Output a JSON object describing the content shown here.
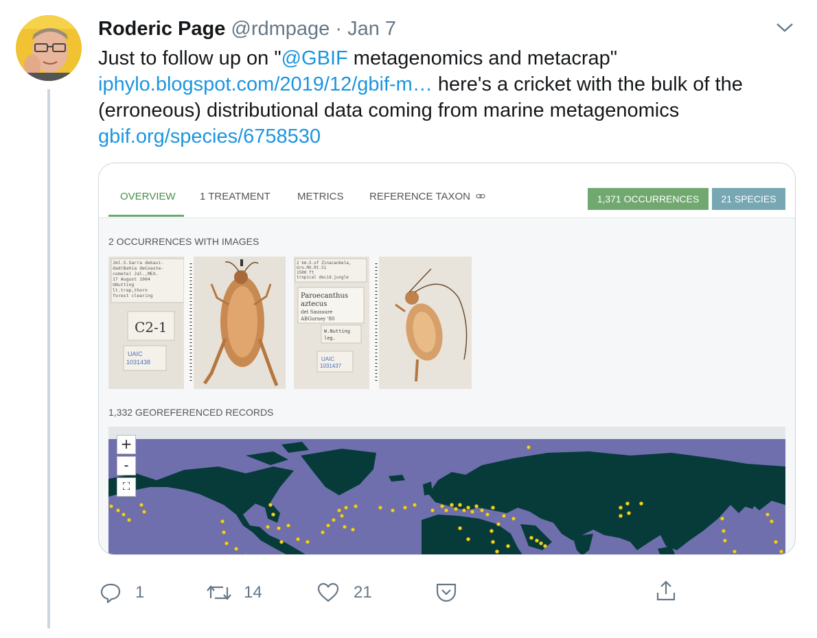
{
  "tweet": {
    "author_name": "Roderic Page",
    "handle": "@rdmpage",
    "separator": "·",
    "date": "Jan 7",
    "text_before": "Just to follow up on \"",
    "mention": "@GBIF",
    "text_after_mention": " metagenomics and metacrap\"",
    "link1": "iphylo.blogspot.com/2019/12/gbif-m…",
    "text_middle": " here's a cricket with the bulk of the (erroneous) distributional data coming from marine metagenomics",
    "link2": "gbif.org/species/6758530"
  },
  "card": {
    "tabs": [
      "OVERVIEW",
      "1 TREATMENT",
      "METRICS",
      "REFERENCE TAXON"
    ],
    "occurrences_button": "1,371 OCCURRENCES",
    "species_button": "21 SPECIES",
    "images_heading": "2 OCCURRENCES WITH IMAGES",
    "georef_heading": "1,332 GEOREFERENCED RECORDS",
    "specimen1": {
      "label_lines": [
        "Jml.S.Sarra dekavi-",
        "dad(Bahia deCoaste-",
        "comete) Jal.,MEX.",
        "17 August 1964",
        "GNutting",
        "lt.trap,thorn",
        "forest clearing"
      ],
      "tag": "C2-1",
      "museum": "UAIC",
      "number": "1031438"
    },
    "specimen2": {
      "label_lines": [
        "2 km.S.of Zinacanbela,",
        "Gro.MX.Rt.51",
        "1500 ft",
        "tropical decid.jungle"
      ],
      "det_lines": [
        "Paroecanthus",
        "aztecus",
        "det Saussure",
        "ABGurney '80"
      ],
      "collector": [
        "W.Nutting",
        "leg."
      ],
      "museum": "UAIC",
      "number": "1031437"
    },
    "map_controls": [
      "+",
      "-",
      "⛶"
    ]
  },
  "actions": {
    "replies": "1",
    "retweets": "14",
    "likes": "21"
  },
  "colors": {
    "link": "#1b95e0",
    "ocean": "#6f6fae",
    "land": "#073b3a",
    "occurrence_dot": "#f2d224",
    "gbif_green": "#71a870",
    "gbif_teal": "#76a7b3",
    "icon_gray": "#657786"
  }
}
